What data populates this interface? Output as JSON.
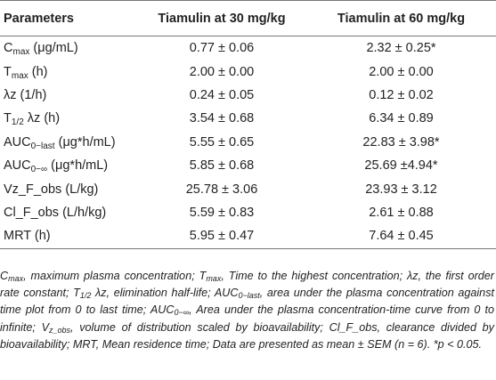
{
  "table": {
    "headers": [
      "Parameters",
      "Tiamulin at 30 mg/kg",
      "Tiamulin at 60 mg/kg"
    ],
    "rows": [
      {
        "param": "C",
        "param_sub": "max",
        "param_tail": " (μg/mL)",
        "dose30": "0.77 ± 0.06",
        "dose60": "2.32 ± 0.25*"
      },
      {
        "param": "T",
        "param_sub": "max",
        "param_tail": " (h)",
        "dose30": "2.00 ± 0.00",
        "dose60": "2.00 ± 0.00"
      },
      {
        "param": "λz (1/h)",
        "param_sub": "",
        "param_tail": "",
        "dose30": "0.24 ± 0.05",
        "dose60": "0.12 ± 0.02"
      },
      {
        "param": "T",
        "param_sub": "1/2",
        "param_tail": " λz (h)",
        "dose30": "3.54 ± 0.68",
        "dose60": "6.34 ± 0.89"
      },
      {
        "param": "AUC",
        "param_sub": "0−last",
        "param_tail": " (μg*h/mL)",
        "dose30": "5.55 ± 0.65",
        "dose60": "22.83 ± 3.98*"
      },
      {
        "param": "AUC",
        "param_sub": "0−∞",
        "param_tail": " (μg*h/mL)",
        "dose30": "5.85 ± 0.68",
        "dose60": "25.69 ±4.94*"
      },
      {
        "param": "Vz_F_obs (L/kg)",
        "param_sub": "",
        "param_tail": "",
        "dose30": "25.78 ± 3.06",
        "dose60": "23.93 ± 3.12"
      },
      {
        "param": "Cl_F_obs (L/h/kg)",
        "param_sub": "",
        "param_tail": "",
        "dose30": "5.59 ± 0.83",
        "dose60": "2.61 ± 0.88"
      },
      {
        "param": "MRT (h)",
        "param_sub": "",
        "param_tail": "",
        "dose30": "5.95 ± 0.47",
        "dose60": "7.64 ± 0.45"
      }
    ]
  },
  "footnote": {
    "p1": "C",
    "s1": "max",
    "p2": ", maximum plasma concentration; T",
    "s2": "max",
    "p3": ", Time to the highest concentration; λz, the first order rate constant; T",
    "s3": "1/2",
    "p4": " λz, elimination half-life; AUC",
    "s4": "0−last",
    "p5": ", area under the plasma concentration against time plot from 0 to last time; AUC",
    "s5": "0−∞",
    "p6": ", Area under the plasma concentration-time curve from 0 to infinite; V",
    "s6": "z_obs",
    "p7": ", volume of distribution scaled by bioavailability; Cl_F_obs, clearance divided by bioavailability; MRT, Mean residence time; Data are presented as mean ± SEM (n = 6). *p < 0.05."
  }
}
